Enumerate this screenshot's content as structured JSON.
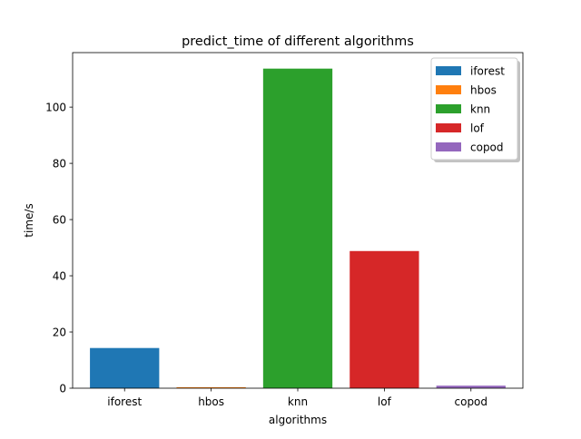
{
  "chart_data": {
    "type": "bar",
    "title": "predict_time of different algorithms",
    "xlabel": "algorithms",
    "ylabel": "time/s",
    "categories": [
      "iforest",
      "hbos",
      "knn",
      "lof",
      "copod"
    ],
    "values": [
      14.3,
      0.35,
      113.7,
      48.8,
      0.9
    ],
    "colors": [
      "#1f77b4",
      "#ff7f0e",
      "#2ca02c",
      "#d62728",
      "#9467bd"
    ],
    "ylim": [
      0,
      119.4
    ],
    "yticks": [
      0,
      20,
      40,
      60,
      80,
      100
    ],
    "grid": false,
    "legend": {
      "position": "top-right",
      "entries": [
        "iforest",
        "hbos",
        "knn",
        "lof",
        "copod"
      ]
    }
  }
}
